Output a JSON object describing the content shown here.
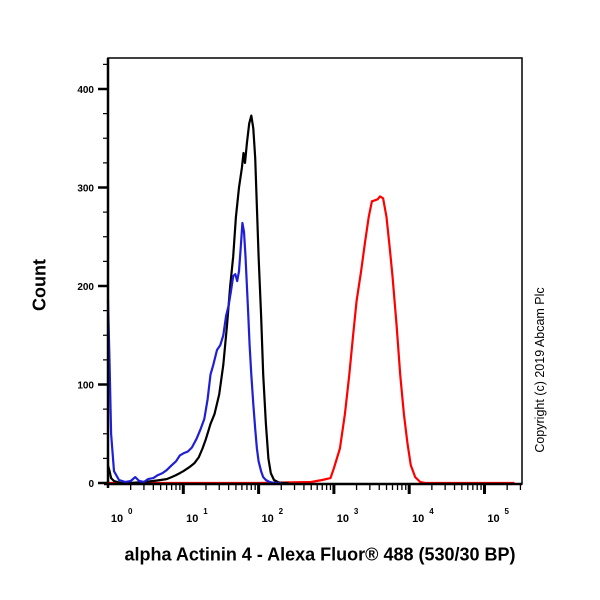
{
  "chart_data": {
    "type": "line",
    "title": "",
    "xlabel": "alpha Actinin 4 - Alexa Fluor® 488 (530/30 BP)",
    "ylabel": "Count",
    "xscale": "log",
    "xlim": [
      1,
      250000
    ],
    "ylim": [
      0,
      430
    ],
    "yticks": [
      0,
      100,
      200,
      300,
      400
    ],
    "xticks": [
      "10^0",
      "10^1",
      "10^2",
      "10^3",
      "10^4",
      "10^5"
    ],
    "grid": false,
    "legend": null,
    "annotation": "Copyright (c) 2019 Abcam Plc",
    "series": [
      {
        "name": "blue",
        "color": "#1f1fd6",
        "x": [
          1.0,
          1.05,
          1.1,
          1.2,
          1.4,
          1.7,
          2.0,
          2.3,
          2.6,
          3.0,
          3.4,
          4.0,
          4.6,
          5.3,
          6.0,
          7.0,
          8.0,
          9.0,
          10.0,
          11.5,
          13,
          15,
          17,
          19,
          21,
          23,
          25,
          28,
          31,
          34,
          37,
          40,
          43,
          46,
          49,
          52,
          55,
          58,
          61,
          64,
          67,
          70,
          73,
          76,
          80,
          85,
          90,
          95,
          100,
          108,
          115,
          125,
          140,
          160,
          200
        ],
        "y": [
          186,
          120,
          50,
          12,
          3,
          1,
          2,
          6,
          2,
          1,
          4,
          5,
          8,
          10,
          13,
          18,
          22,
          28,
          30,
          32,
          36,
          45,
          55,
          65,
          85,
          110,
          120,
          135,
          140,
          150,
          170,
          180,
          195,
          210,
          212,
          205,
          215,
          240,
          264,
          255,
          230,
          200,
          170,
          140,
          110,
          80,
          55,
          35,
          22,
          12,
          6,
          3,
          1,
          0,
          0
        ]
      },
      {
        "name": "black",
        "color": "#000000",
        "x": [
          1.0,
          1.05,
          1.1,
          1.2,
          1.5,
          2.0,
          3.0,
          4.0,
          5.0,
          6.0,
          7.0,
          8.0,
          9.0,
          10,
          12,
          14,
          16,
          18,
          20,
          23,
          26,
          30,
          34,
          38,
          42,
          46,
          50,
          55,
          60,
          63,
          66,
          70,
          75,
          80,
          85,
          90,
          95,
          100,
          108,
          115,
          125,
          135,
          145,
          160,
          180,
          200,
          250
        ],
        "y": [
          18,
          12,
          5,
          2,
          0,
          0,
          1,
          2,
          3,
          4,
          6,
          8,
          10,
          12,
          16,
          20,
          26,
          35,
          45,
          60,
          70,
          90,
          120,
          160,
          200,
          230,
          270,
          300,
          320,
          335,
          325,
          345,
          365,
          373,
          360,
          330,
          280,
          230,
          170,
          110,
          60,
          25,
          10,
          3,
          1,
          0,
          0
        ]
      },
      {
        "name": "red",
        "color": "#ff0000",
        "x": [
          1,
          100,
          500,
          700,
          900,
          1000,
          1200,
          1400,
          1600,
          1800,
          2000,
          2300,
          2600,
          2900,
          3200,
          3500,
          3800,
          4100,
          4500,
          5000,
          5500,
          6000,
          6800,
          7600,
          8500,
          9500,
          10500,
          12000,
          14000,
          16000,
          20000,
          50000,
          250000
        ],
        "y": [
          0,
          0,
          1,
          3,
          5,
          15,
          35,
          70,
          110,
          150,
          185,
          215,
          245,
          270,
          286,
          287,
          288,
          291,
          289,
          270,
          240,
          210,
          160,
          110,
          70,
          40,
          18,
          6,
          1,
          0,
          0,
          0,
          0
        ]
      }
    ]
  },
  "axes": {
    "ylabel": "Count",
    "xlabel": "alpha Actinin 4 - Alexa Fluor® 488 (530/30 BP)",
    "ytick_labels": [
      "0",
      "100",
      "200",
      "300",
      "400"
    ],
    "xtick_base": "10",
    "xtick_exponents": [
      "0",
      "1",
      "2",
      "3",
      "4",
      "5"
    ]
  },
  "copyright": "Copyright (c) 2019 Abcam Plc"
}
